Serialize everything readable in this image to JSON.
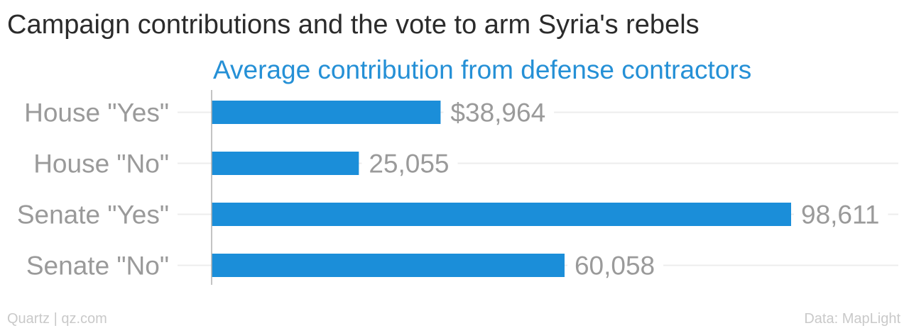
{
  "title": "Campaign contributions and the vote to arm Syria's rebels",
  "colors": {
    "bar": "#1b8ed9",
    "subtitle": "#2590d6",
    "category_label": "#9a9a9a",
    "value_label": "#9a9a9a",
    "gridline": "#ececec",
    "axis": "#b0b0b0"
  },
  "footer": {
    "source_left": "Quartz | qz.com",
    "source_right": "Data: MapLight"
  },
  "chart_data": {
    "type": "bar",
    "orientation": "horizontal",
    "subtitle": "Average contribution from defense contractors",
    "categories": [
      "House \"Yes\"",
      "House \"No\"",
      "Senate \"Yes\"",
      "Senate \"No\""
    ],
    "values": [
      38964,
      25055,
      98611,
      60058
    ],
    "value_labels": [
      "$38,964",
      "25,055",
      "98,611",
      "60,058"
    ],
    "xlim": [
      0,
      100000
    ],
    "grid": true,
    "legend": "none"
  }
}
